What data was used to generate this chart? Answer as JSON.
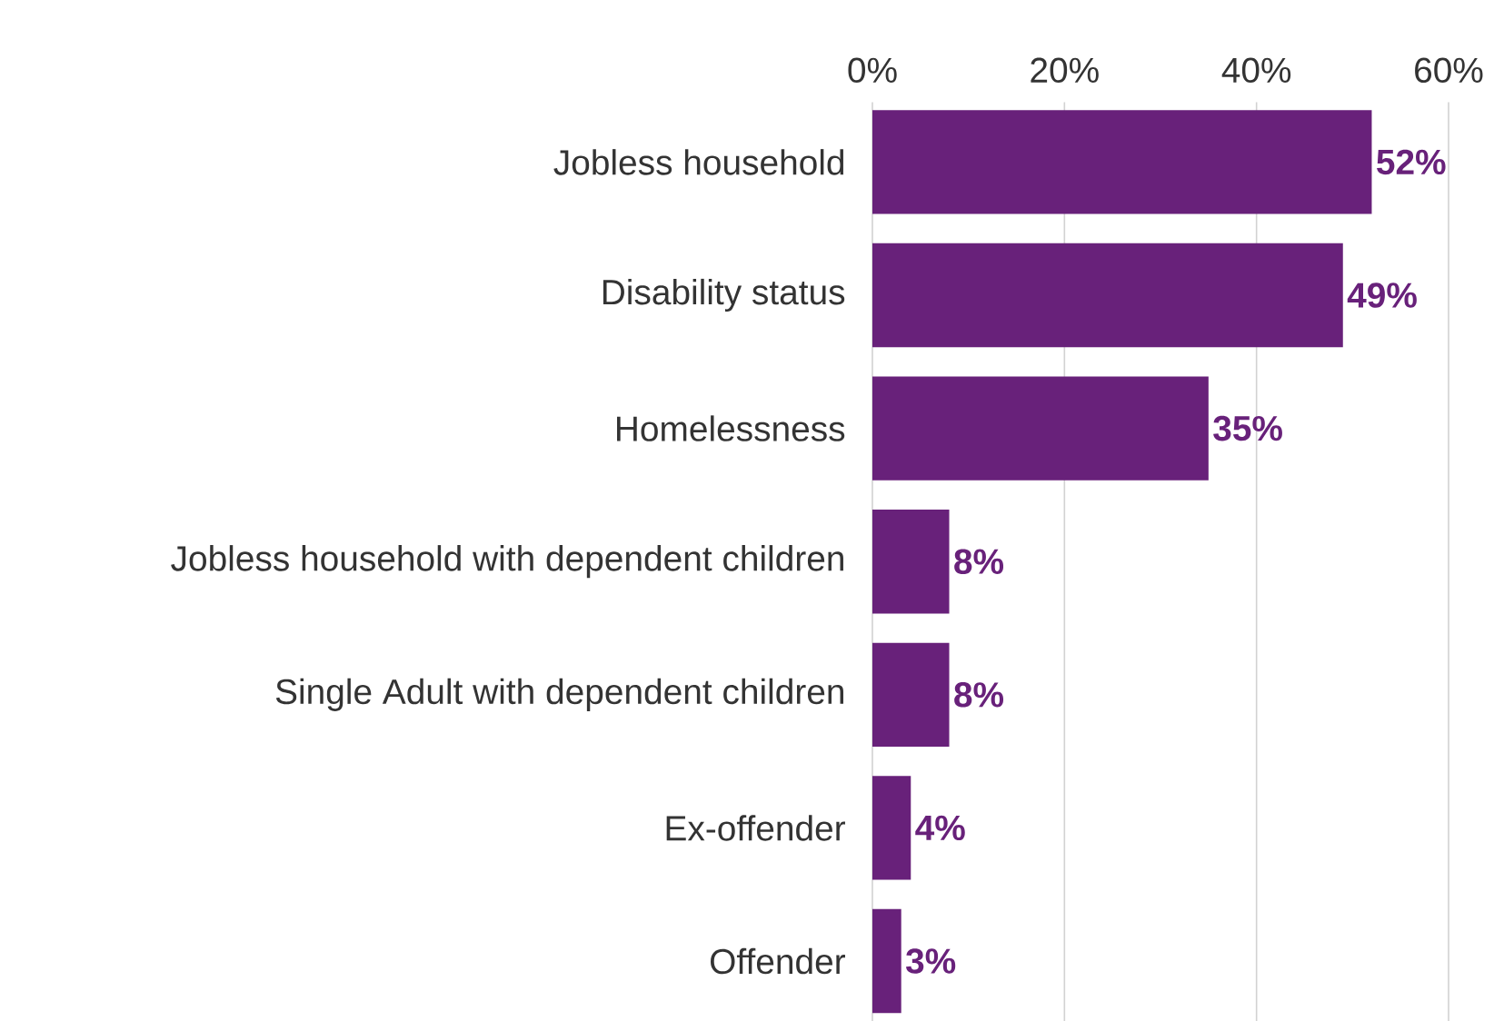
{
  "chart_data": {
    "type": "bar",
    "orientation": "horizontal",
    "categories": [
      "Jobless household",
      "Disability status",
      "Homelessness",
      "Jobless household with dependent children",
      "Single Adult with dependent children",
      "Ex-offender",
      "Offender"
    ],
    "values": [
      52,
      49,
      35,
      8,
      8,
      4,
      3
    ],
    "value_labels": [
      "52%",
      "49%",
      "35%",
      "8%",
      "8%",
      "4%",
      "3%"
    ],
    "color": "#68217a",
    "xlim": [
      0,
      60
    ],
    "xticks": [
      {
        "value": 0,
        "label": "0%"
      },
      {
        "value": 20,
        "label": "20%"
      },
      {
        "value": 40,
        "label": "40%"
      },
      {
        "value": 60,
        "label": "60%"
      }
    ],
    "grid": "x"
  }
}
